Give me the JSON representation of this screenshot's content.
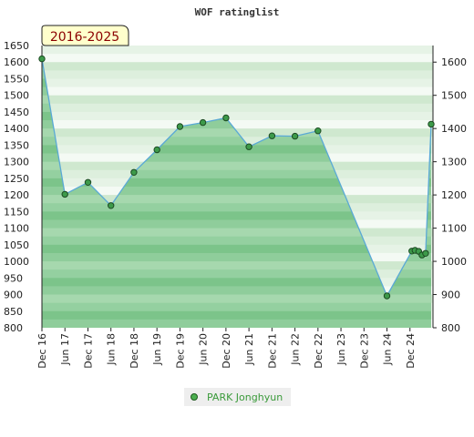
{
  "chart_data": {
    "type": "area",
    "title": "WOF ratinglist",
    "badge": "2016-2025",
    "ylim": [
      800,
      1650
    ],
    "left_ticks": [
      800,
      850,
      900,
      950,
      1000,
      1050,
      1100,
      1150,
      1200,
      1250,
      1300,
      1350,
      1400,
      1450,
      1500,
      1550,
      1600,
      1650
    ],
    "right_ticks": [
      800,
      900,
      1000,
      1100,
      1200,
      1300,
      1400,
      1500,
      1600
    ],
    "categories": [
      "Dec 16",
      "Jun 17",
      "Dec 17",
      "Jun 18",
      "Dec 18",
      "Jun 19",
      "Dec 19",
      "Jun 20",
      "Dec 20",
      "Jun 21",
      "Dec 21",
      "Jun 22",
      "Dec 22",
      "Jun 23",
      "Dec 23",
      "Jun 24",
      "Dec 24"
    ],
    "grid": true,
    "legend_position": "bottom",
    "series": [
      {
        "name": "PARK Jonghyun",
        "color": "#4caf50",
        "points": [
          {
            "x": 0,
            "y": 1610
          },
          {
            "x": 1,
            "y": 1202
          },
          {
            "x": 2,
            "y": 1238
          },
          {
            "x": 3,
            "y": 1168
          },
          {
            "x": 4,
            "y": 1268
          },
          {
            "x": 5,
            "y": 1336
          },
          {
            "x": 6,
            "y": 1406
          },
          {
            "x": 7,
            "y": 1418
          },
          {
            "x": 8,
            "y": 1432
          },
          {
            "x": 9,
            "y": 1345
          },
          {
            "x": 10,
            "y": 1378
          },
          {
            "x": 11,
            "y": 1377
          },
          {
            "x": 12,
            "y": 1393
          },
          {
            "x": 15,
            "y": 896
          },
          {
            "x": 16.08,
            "y": 1031
          },
          {
            "x": 16.22,
            "y": 1033
          },
          {
            "x": 16.38,
            "y": 1030
          },
          {
            "x": 16.52,
            "y": 1019
          },
          {
            "x": 16.68,
            "y": 1024
          },
          {
            "x": 16.92,
            "y": 1413
          }
        ]
      }
    ]
  }
}
